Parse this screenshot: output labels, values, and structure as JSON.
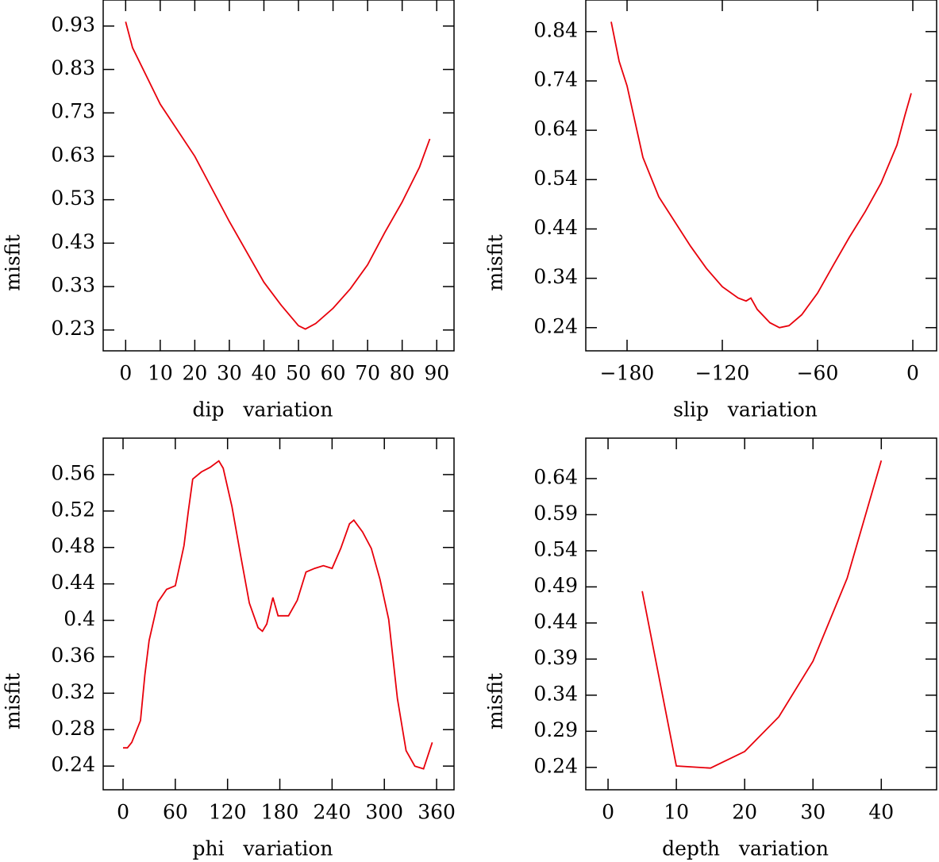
{
  "chart_data": [
    {
      "type": "line",
      "xlabel": "dip   variation",
      "ylabel": "misfit",
      "color": "#e8000b",
      "x": [
        0,
        2,
        10,
        20,
        30,
        40,
        45,
        50,
        52,
        55,
        60,
        65,
        70,
        75,
        80,
        85,
        88
      ],
      "values": [
        0.94,
        0.88,
        0.75,
        0.63,
        0.48,
        0.34,
        0.287,
        0.24,
        0.232,
        0.245,
        0.28,
        0.325,
        0.38,
        0.455,
        0.525,
        0.605,
        0.67
      ],
      "xlim": [
        -6.5,
        95
      ],
      "ylim": [
        0.182,
        0.99
      ],
      "xticks": [
        0,
        10,
        20,
        30,
        40,
        50,
        60,
        70,
        80,
        90
      ],
      "yticks": [
        0.23,
        0.33,
        0.43,
        0.53,
        0.63,
        0.73,
        0.83,
        0.93
      ]
    },
    {
      "type": "line",
      "xlabel": "slip   variation",
      "ylabel": "misfit",
      "color": "#e8000b",
      "x": [
        -190,
        -185,
        -180,
        -170,
        -160,
        -150,
        -140,
        -130,
        -120,
        -110,
        -105,
        -102,
        -98,
        -90,
        -84,
        -78,
        -70,
        -60,
        -50,
        -40,
        -30,
        -20,
        -10,
        -5,
        -1
      ],
      "values": [
        0.86,
        0.78,
        0.73,
        0.585,
        0.505,
        0.455,
        0.405,
        0.36,
        0.323,
        0.3,
        0.294,
        0.3,
        0.277,
        0.25,
        0.24,
        0.244,
        0.266,
        0.31,
        0.367,
        0.423,
        0.475,
        0.533,
        0.61,
        0.67,
        0.715
      ],
      "xlim": [
        -206,
        15
      ],
      "ylim": [
        0.193,
        0.904
      ],
      "xticks": [
        {
          "value": -180,
          "label": "−180"
        },
        {
          "value": -120,
          "label": "−120"
        },
        {
          "value": -60,
          "label": "−60"
        },
        0
      ],
      "yticks": [
        0.24,
        0.34,
        0.44,
        0.54,
        0.64,
        0.74,
        0.84
      ]
    },
    {
      "type": "line",
      "xlabel": "phi   variation",
      "ylabel": "misfit",
      "color": "#e8000b",
      "x": [
        0,
        5,
        10,
        20,
        25,
        30,
        40,
        50,
        60,
        70,
        75,
        80,
        90,
        100,
        110,
        115,
        125,
        135,
        145,
        155,
        160,
        165,
        172,
        178,
        190,
        200,
        210,
        220,
        230,
        240,
        250,
        260,
        265,
        275,
        285,
        295,
        305,
        315,
        325,
        335,
        345,
        355
      ],
      "values": [
        0.26,
        0.26,
        0.266,
        0.29,
        0.34,
        0.378,
        0.42,
        0.434,
        0.438,
        0.482,
        0.52,
        0.555,
        0.563,
        0.568,
        0.575,
        0.567,
        0.525,
        0.471,
        0.419,
        0.392,
        0.388,
        0.396,
        0.425,
        0.405,
        0.405,
        0.422,
        0.453,
        0.457,
        0.46,
        0.457,
        0.479,
        0.506,
        0.51,
        0.497,
        0.479,
        0.445,
        0.401,
        0.314,
        0.257,
        0.24,
        0.237,
        0.266
      ],
      "xlim": [
        -22.8,
        380
      ],
      "ylim": [
        0.214,
        0.6
      ],
      "xticks": [
        0,
        60,
        120,
        180,
        240,
        300,
        360
      ],
      "yticks": [
        0.24,
        0.28,
        0.32,
        0.36,
        0.4,
        0.44,
        0.48,
        0.52,
        0.56
      ]
    },
    {
      "type": "line",
      "xlabel": "depth   variation",
      "ylabel": "misfit",
      "color": "#e8000b",
      "x": [
        5,
        10,
        15,
        20,
        25,
        30,
        35,
        40
      ],
      "values": [
        0.484,
        0.242,
        0.239,
        0.262,
        0.31,
        0.387,
        0.502,
        0.665
      ],
      "xlim": [
        -3.26,
        48.1
      ],
      "ylim": [
        0.209,
        0.696
      ],
      "xticks": [
        0,
        10,
        20,
        30,
        40
      ],
      "yticks": [
        0.24,
        0.29,
        0.34,
        0.39,
        0.44,
        0.49,
        0.54,
        0.59,
        0.64
      ]
    }
  ]
}
